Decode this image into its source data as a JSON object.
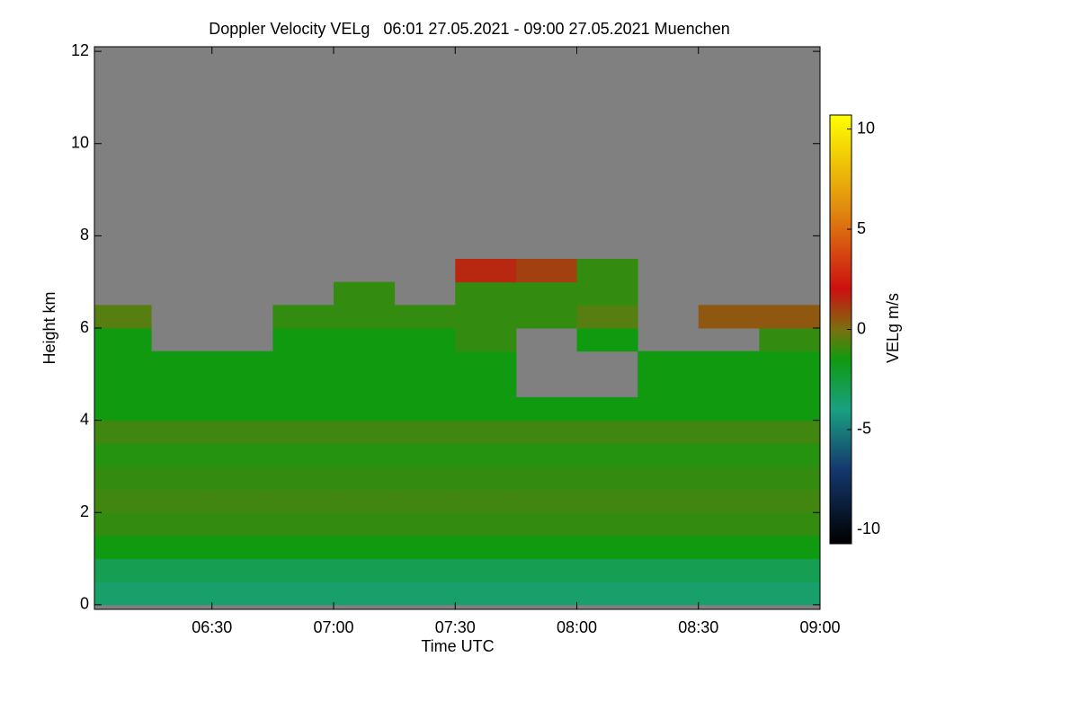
{
  "chart_data": {
    "type": "heatmap",
    "title": "Doppler Velocity VELg   06:01 27.05.2021 - 09:00 27.05.2021 Muenchen",
    "xlabel": "Time UTC",
    "ylabel": "Height km",
    "xlim": [
      361,
      540
    ],
    "ylim": [
      -0.1,
      12.1
    ],
    "xticks": [
      {
        "value": 390,
        "label": "06:30"
      },
      {
        "value": 420,
        "label": "07:00"
      },
      {
        "value": 450,
        "label": "07:30"
      },
      {
        "value": 480,
        "label": "08:00"
      },
      {
        "value": 510,
        "label": "08:30"
      },
      {
        "value": 540,
        "label": "09:00"
      }
    ],
    "yticks": [
      0,
      2,
      4,
      6,
      8,
      10,
      12
    ],
    "x_bins": [
      361,
      375,
      390,
      405,
      420,
      435,
      450,
      465,
      480,
      495,
      510,
      525,
      540
    ],
    "y_bins": [
      0,
      0.5,
      1,
      1.5,
      2,
      2.5,
      3,
      3.5,
      4,
      4.5,
      5,
      5.5,
      6,
      6.5,
      7,
      7.5,
      8
    ],
    "z": [
      [
        -3.5,
        -3.5,
        -3.5,
        -3.5,
        -3.5,
        -3.5,
        -3.5,
        -3.5,
        -3.5,
        -3.5,
        -3.5,
        -3.5
      ],
      [
        -3,
        -3,
        -3,
        -3,
        -3,
        -3,
        -3,
        -3,
        -3,
        -3,
        -3,
        -3
      ],
      [
        -1.5,
        -1.5,
        -1.5,
        -1.5,
        -1.5,
        -1.5,
        -1.5,
        -1.5,
        -1.5,
        -1.5,
        -1.5,
        -1.5
      ],
      [
        -1,
        -1,
        -1,
        -1,
        -1,
        -1,
        -1,
        -1,
        -1,
        -1,
        -1,
        -1
      ],
      [
        -0.8,
        -0.8,
        -0.8,
        -0.8,
        -0.8,
        -0.8,
        -0.8,
        -0.8,
        -0.8,
        -0.8,
        -0.8,
        -0.8
      ],
      [
        -1,
        -1,
        -1,
        -1,
        -1,
        -1,
        -1,
        -1,
        -1,
        -1,
        -1,
        -1
      ],
      [
        -1.2,
        -1.2,
        -1.2,
        -1.2,
        -1.2,
        -1.2,
        -1.2,
        -1.2,
        -1.2,
        -1.2,
        -1.2,
        -1.2
      ],
      [
        -0.8,
        -0.8,
        -0.8,
        -0.8,
        -0.8,
        -0.8,
        -0.8,
        -0.8,
        -0.8,
        -0.8,
        -0.8,
        -0.8
      ],
      [
        -1.5,
        -1.5,
        -1.5,
        -1.5,
        -1.5,
        -1.5,
        -1.5,
        -1.5,
        -1.5,
        -1.5,
        -1.5,
        -1.5
      ],
      [
        -1.5,
        -1.5,
        -1.5,
        -1.5,
        -1.5,
        -1.5,
        -1.5,
        null,
        null,
        -1.5,
        -1.5,
        -1.5
      ],
      [
        -1.5,
        -1.5,
        -1.5,
        -1.5,
        -1.5,
        -1.5,
        -1.5,
        null,
        null,
        -1.5,
        -1.5,
        -1.5
      ],
      [
        -1.5,
        null,
        null,
        -1.5,
        -1.5,
        -1.5,
        -1,
        null,
        -1.5,
        null,
        null,
        -1
      ],
      [
        -0.5,
        null,
        null,
        -1,
        -1,
        -1,
        -1,
        -1,
        -0.5,
        null,
        0.5,
        0.5
      ],
      [
        null,
        null,
        null,
        null,
        -1,
        null,
        -1,
        -1,
        -1,
        null,
        null,
        null
      ],
      [
        null,
        null,
        null,
        null,
        null,
        null,
        1.5,
        1,
        -1,
        null,
        null,
        null
      ],
      [
        null,
        null,
        null,
        null,
        null,
        null,
        null,
        null,
        null,
        null,
        null,
        null
      ]
    ],
    "missing_color": "#808080",
    "colorbar": {
      "label": "VELg m/s",
      "lim": [
        -10.7,
        10.7
      ],
      "ticks": [
        -10,
        -5,
        0,
        5,
        10
      ],
      "colorscale": [
        {
          "value": -10.7,
          "color": "#000000"
        },
        {
          "value": -7,
          "color": "#14386e"
        },
        {
          "value": -4,
          "color": "#1aa080"
        },
        {
          "value": -1.5,
          "color": "#109a10"
        },
        {
          "value": 0,
          "color": "#7a7010"
        },
        {
          "value": 2,
          "color": "#cc1010"
        },
        {
          "value": 6,
          "color": "#e08a10"
        },
        {
          "value": 10.7,
          "color": "#ffff00"
        }
      ]
    }
  }
}
